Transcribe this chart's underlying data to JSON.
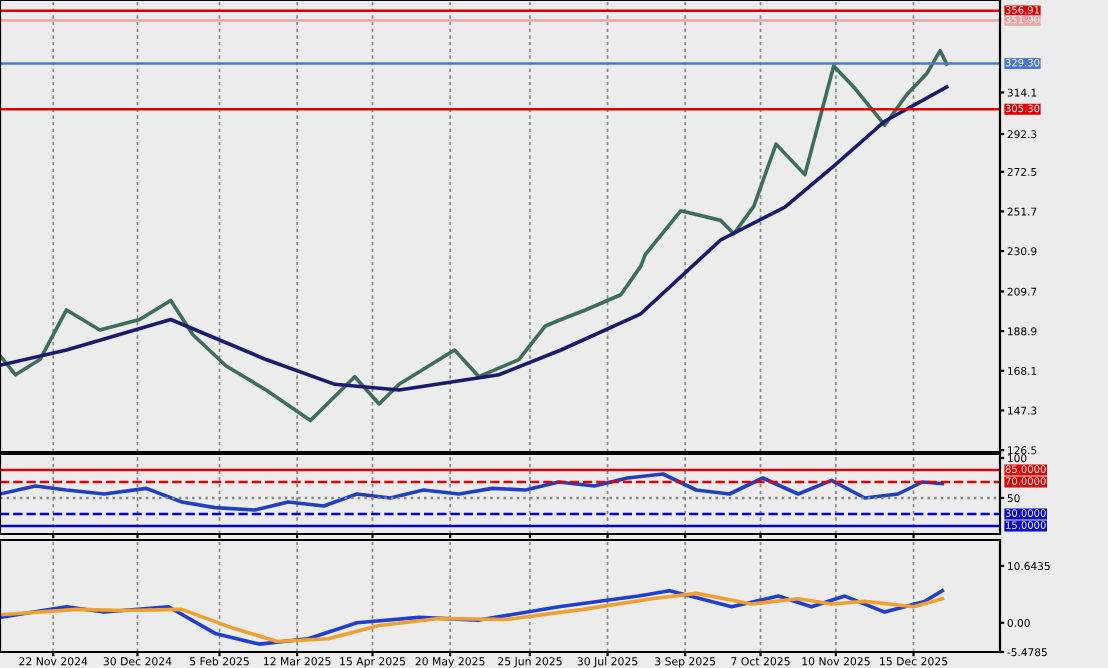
{
  "chart_data": [
    {
      "type": "line",
      "xlim": [
        "2024-10-29",
        "2026-01-23"
      ],
      "ylim": [
        125.5,
        362.6
      ],
      "yticks": [
        314.1,
        292.3,
        272.5,
        251.7,
        230.9,
        209.7,
        188.9,
        168.1,
        147.3,
        126.5
      ],
      "xticks": [
        {
          "value": "2024-11-22",
          "label": null
        },
        {
          "value": "2024-12-30",
          "label": null
        },
        {
          "value": "2025-02-05",
          "label": null
        },
        {
          "value": "2025-03-12",
          "label": null
        },
        {
          "value": "2025-04-15",
          "label": null
        },
        {
          "value": "2025-05-20",
          "label": null
        },
        {
          "value": "2025-06-25",
          "label": null
        },
        {
          "value": "2025-07-30",
          "label": null
        },
        {
          "value": "2025-09-03",
          "label": null
        },
        {
          "value": "2025-10-07",
          "label": null
        },
        {
          "value": "2025-11-10",
          "label": null
        },
        {
          "value": "2025-12-15",
          "label": null
        }
      ],
      "tick_labels": "y",
      "grid": "x",
      "legend": false,
      "ref_lines": [
        {
          "axis": "y",
          "value": 356.91,
          "label": "356.91",
          "color": "#e00000",
          "line_style": "solid"
        },
        {
          "axis": "y",
          "value": 351.9,
          "label": "351.90",
          "color": "#f4a0a0",
          "line_style": "solid"
        },
        {
          "axis": "y",
          "value": 329.3,
          "label": "329.30",
          "color": "#4a78d0",
          "line_style": "solid"
        },
        {
          "axis": "y",
          "value": 305.3,
          "label": "305.30",
          "color": "#e00000",
          "line_style": "solid"
        }
      ],
      "series": [
        {
          "color": "#3d6e5c",
          "x": [
            "2024-10-29",
            "2024-11-05",
            "2024-11-16",
            "2024-11-28",
            "2024-12-13",
            "2024-12-31",
            "2025-01-14",
            "2025-01-24",
            "2025-02-08",
            "2025-02-26",
            "2025-03-18",
            "2025-04-07",
            "2025-04-18",
            "2025-04-27",
            "2025-05-22",
            "2025-06-02",
            "2025-06-20",
            "2025-07-02",
            "2025-07-09",
            "2025-07-20",
            "2025-08-05",
            "2025-08-14",
            "2025-08-16",
            "2025-09-01",
            "2025-09-19",
            "2025-09-25",
            "2025-10-04",
            "2025-10-14",
            "2025-10-27",
            "2025-11-09",
            "2025-11-18",
            "2025-12-02",
            "2025-12-12",
            "2025-12-21",
            "2025-12-27",
            "2025-12-30"
          ],
          "values": [
            176,
            166,
            174,
            200,
            189.5,
            195,
            205,
            187,
            170.6,
            158,
            142,
            165,
            150.7,
            161,
            179,
            165,
            174,
            191.6,
            195,
            200,
            208,
            223,
            229,
            252,
            247,
            240,
            254.5,
            287,
            271,
            328,
            317,
            297,
            313,
            324,
            336,
            329
          ]
        },
        {
          "color": "#1a1a6e",
          "x": [
            "2024-10-29",
            "2024-11-28",
            "2025-01-14",
            "2025-02-26",
            "2025-03-29",
            "2025-04-27",
            "2025-06-11",
            "2025-07-09",
            "2025-08-14",
            "2025-09-19",
            "2025-10-18",
            "2025-11-09",
            "2025-12-02",
            "2025-12-30"
          ],
          "values": [
            171,
            179,
            195,
            174,
            161,
            158,
            166,
            179,
            198,
            236.7,
            254,
            275.5,
            299,
            317
          ]
        }
      ]
    },
    {
      "type": "line",
      "xlim": [
        "2024-10-29",
        "2026-01-23"
      ],
      "ylim": [
        5,
        105
      ],
      "yticks": [
        100,
        50
      ],
      "xticks": [
        {
          "value": "2024-11-22",
          "label": null
        },
        {
          "value": "2024-12-30",
          "label": null
        },
        {
          "value": "2025-02-05",
          "label": null
        },
        {
          "value": "2025-03-12",
          "label": null
        },
        {
          "value": "2025-04-15",
          "label": null
        },
        {
          "value": "2025-05-20",
          "label": null
        },
        {
          "value": "2025-06-25",
          "label": null
        },
        {
          "value": "2025-07-30",
          "label": null
        },
        {
          "value": "2025-09-03",
          "label": null
        },
        {
          "value": "2025-10-07",
          "label": null
        },
        {
          "value": "2025-11-10",
          "label": null
        },
        {
          "value": "2025-12-15",
          "label": null
        }
      ],
      "tick_labels": "y",
      "grid": "x",
      "ref_lines": [
        {
          "axis": "y",
          "value": 85,
          "label": "85.0000",
          "color": "#e00000",
          "line_style": "solid"
        },
        {
          "axis": "y",
          "value": 70,
          "label": "70.0000",
          "color": "#e00000",
          "line_style": "dashed"
        },
        {
          "axis": "y",
          "value": 50,
          "label": null,
          "color": "#888888",
          "line_style": "dotted"
        },
        {
          "axis": "y",
          "value": 30,
          "label": "30.0000",
          "color": "#0000d0",
          "line_style": "dashed"
        },
        {
          "axis": "y",
          "value": 15,
          "label": "15.0000",
          "color": "#0000d0",
          "line_style": "solid"
        }
      ],
      "series": [
        {
          "color": "#2040c0",
          "x": [
            "2024-10-29",
            "2024-11-14",
            "2024-11-28",
            "2024-12-15",
            "2025-01-03",
            "2025-01-19",
            "2025-02-03",
            "2025-02-21",
            "2025-03-08",
            "2025-03-24",
            "2025-04-08",
            "2025-04-23",
            "2025-05-08",
            "2025-05-24",
            "2025-06-08",
            "2025-06-23",
            "2025-07-08",
            "2025-07-24",
            "2025-08-08",
            "2025-08-24",
            "2025-09-08",
            "2025-09-23",
            "2025-10-08",
            "2025-10-24",
            "2025-11-08",
            "2025-11-23",
            "2025-12-08",
            "2025-12-19",
            "2025-12-28"
          ],
          "values": [
            55,
            65,
            60,
            55,
            62,
            45,
            38,
            35,
            45,
            40,
            55,
            50,
            60,
            55,
            62,
            60,
            70,
            65,
            75,
            80,
            60,
            55,
            75,
            55,
            72,
            50,
            55,
            70,
            68
          ]
        }
      ]
    },
    {
      "type": "line",
      "xlim": [
        "2024-10-29",
        "2026-01-23"
      ],
      "ylim": [
        -5.4785,
        15.5
      ],
      "yticks": [
        10.6435,
        {
          "value": 0,
          "label": "0.00"
        },
        -5.4785
      ],
      "xticks": [
        {
          "value": "2024-11-22",
          "label": "22 Nov 2024"
        },
        {
          "value": "2024-12-30",
          "label": "30 Dec 2024"
        },
        {
          "value": "2025-02-05",
          "label": "5 Feb 2025"
        },
        {
          "value": "2025-03-12",
          "label": "12 Mar 2025"
        },
        {
          "value": "2025-04-15",
          "label": "15 Apr 2025"
        },
        {
          "value": "2025-05-20",
          "label": "20 May 2025"
        },
        {
          "value": "2025-06-25",
          "label": "25 Jun 2025"
        },
        {
          "value": "2025-07-30",
          "label": "30 Jul 2025"
        },
        {
          "value": "2025-09-03",
          "label": "3 Sep 2025"
        },
        {
          "value": "2025-10-07",
          "label": "7 Oct 2025"
        },
        {
          "value": "2025-11-10",
          "label": "10 Nov 2025"
        },
        {
          "value": "2025-12-15",
          "label": "15 Dec 2025"
        }
      ],
      "grid": "x",
      "series": [
        {
          "color": "#1f3fd0",
          "x": [
            "2024-10-29",
            "2024-11-28",
            "2024-12-15",
            "2025-01-13",
            "2025-02-03",
            "2025-02-23",
            "2025-03-17",
            "2025-04-08",
            "2025-05-06",
            "2025-06-02",
            "2025-07-08",
            "2025-08-13",
            "2025-08-27",
            "2025-09-24",
            "2025-10-15",
            "2025-10-30",
            "2025-11-14",
            "2025-12-02",
            "2025-12-20",
            "2025-12-28"
          ],
          "values": [
            1,
            3,
            2,
            3,
            -2,
            -4,
            -3,
            0,
            1,
            0.5,
            3,
            5,
            6,
            3,
            5,
            3,
            5,
            2,
            4,
            6
          ]
        },
        {
          "color": "#f0a030",
          "x": [
            "2024-10-29",
            "2024-12-03",
            "2024-12-24",
            "2025-01-19",
            "2025-02-11",
            "2025-03-03",
            "2025-03-26",
            "2025-04-18",
            "2025-05-15",
            "2025-06-14",
            "2025-07-19",
            "2025-08-19",
            "2025-09-08",
            "2025-10-03",
            "2025-10-24",
            "2025-11-08",
            "2025-11-23",
            "2025-12-15",
            "2025-12-28"
          ],
          "values": [
            1.5,
            2.5,
            2.3,
            2.5,
            -1,
            -3.5,
            -3,
            -0.5,
            0.8,
            0.6,
            2.5,
            4.5,
            5.5,
            3.5,
            4.5,
            3.5,
            4,
            3,
            4.5
          ]
        }
      ]
    }
  ]
}
